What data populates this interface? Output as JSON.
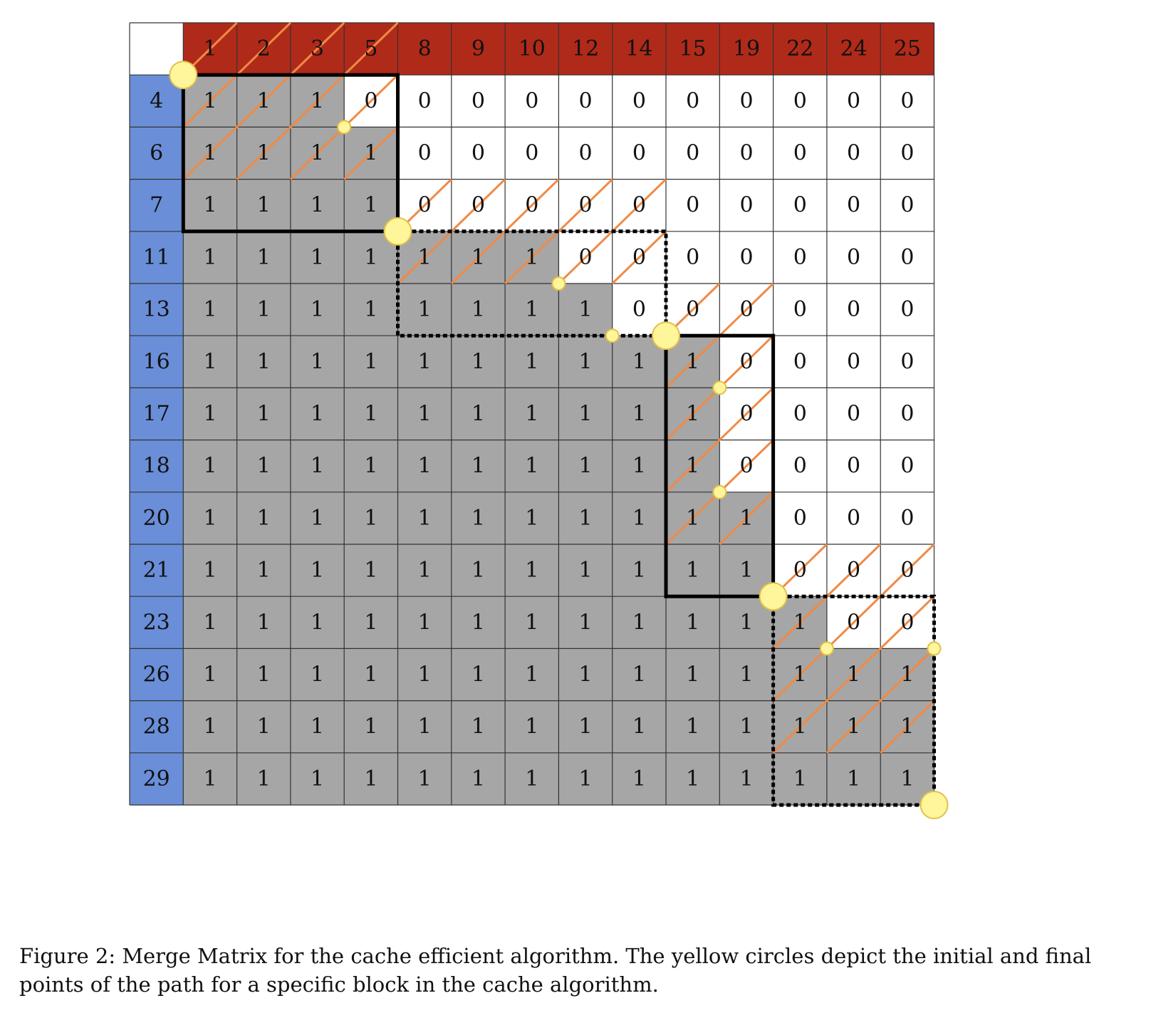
{
  "caption": "Figure 2: Merge Matrix for the cache efficient algorithm. The yellow circles depict the initial and final points of the path for a specific block in the cache algorithm.",
  "colors": {
    "column_header": "#b02a1a",
    "row_header": "#6a8fd8",
    "shaded_cell": "#a6a6a6",
    "empty_cell": "#ffffff",
    "grid_line": "#333333",
    "block_border": "#000000",
    "diagonal": "#f08a45",
    "marker": "#fff59a",
    "marker_stroke": "#e0c24a"
  },
  "matrix": {
    "column_headers": [
      "1",
      "2",
      "3",
      "5",
      "8",
      "9",
      "10",
      "12",
      "14",
      "15",
      "19",
      "22",
      "24",
      "25"
    ],
    "row_headers": [
      "4",
      "6",
      "7",
      "11",
      "13",
      "16",
      "17",
      "18",
      "20",
      "21",
      "23",
      "26",
      "28",
      "29"
    ],
    "cells": [
      [
        "1",
        "1",
        "1",
        "0",
        "0",
        "0",
        "0",
        "0",
        "0",
        "0",
        "0",
        "0",
        "0",
        "0"
      ],
      [
        "1",
        "1",
        "1",
        "1",
        "0",
        "0",
        "0",
        "0",
        "0",
        "0",
        "0",
        "0",
        "0",
        "0"
      ],
      [
        "1",
        "1",
        "1",
        "1",
        "0",
        "0",
        "0",
        "0",
        "0",
        "0",
        "0",
        "0",
        "0",
        "0"
      ],
      [
        "1",
        "1",
        "1",
        "1",
        "1",
        "1",
        "1",
        "0",
        "0",
        "0",
        "0",
        "0",
        "0",
        "0"
      ],
      [
        "1",
        "1",
        "1",
        "1",
        "1",
        "1",
        "1",
        "1",
        "0",
        "0",
        "0",
        "0",
        "0",
        "0"
      ],
      [
        "1",
        "1",
        "1",
        "1",
        "1",
        "1",
        "1",
        "1",
        "1",
        "1",
        "0",
        "0",
        "0",
        "0"
      ],
      [
        "1",
        "1",
        "1",
        "1",
        "1",
        "1",
        "1",
        "1",
        "1",
        "1",
        "0",
        "0",
        "0",
        "0"
      ],
      [
        "1",
        "1",
        "1",
        "1",
        "1",
        "1",
        "1",
        "1",
        "1",
        "1",
        "0",
        "0",
        "0",
        "0"
      ],
      [
        "1",
        "1",
        "1",
        "1",
        "1",
        "1",
        "1",
        "1",
        "1",
        "1",
        "1",
        "0",
        "0",
        "0"
      ],
      [
        "1",
        "1",
        "1",
        "1",
        "1",
        "1",
        "1",
        "1",
        "1",
        "1",
        "1",
        "0",
        "0",
        "0"
      ],
      [
        "1",
        "1",
        "1",
        "1",
        "1",
        "1",
        "1",
        "1",
        "1",
        "1",
        "1",
        "1",
        "0",
        "0"
      ],
      [
        "1",
        "1",
        "1",
        "1",
        "1",
        "1",
        "1",
        "1",
        "1",
        "1",
        "1",
        "1",
        "1",
        "1"
      ],
      [
        "1",
        "1",
        "1",
        "1",
        "1",
        "1",
        "1",
        "1",
        "1",
        "1",
        "1",
        "1",
        "1",
        "1"
      ],
      [
        "1",
        "1",
        "1",
        "1",
        "1",
        "1",
        "1",
        "1",
        "1",
        "1",
        "1",
        "1",
        "1",
        "1"
      ]
    ],
    "block_corners": [
      [
        0,
        0
      ],
      [
        3,
        4
      ],
      [
        5,
        9
      ],
      [
        10,
        11
      ],
      [
        14,
        14
      ]
    ],
    "path_points": [
      [
        1,
        3
      ],
      [
        4,
        7
      ],
      [
        5,
        8
      ],
      [
        6,
        10
      ],
      [
        8,
        10
      ],
      [
        11,
        12
      ],
      [
        11,
        14
      ]
    ]
  }
}
